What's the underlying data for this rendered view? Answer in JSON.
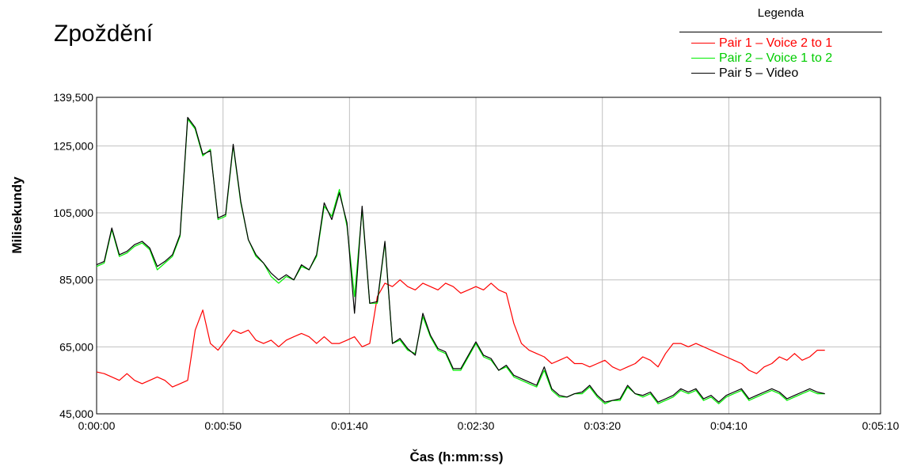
{
  "chart_data": {
    "type": "line",
    "title": "Zpoždění",
    "xlabel": "Čas (h:mm:ss)",
    "ylabel": "Milisekundy",
    "x_unit": "h:mm:ss",
    "xlim": [
      "0:00:00",
      "0:05:10"
    ],
    "ylim": [
      45000,
      139500
    ],
    "x_ticks": [
      "0:00:00",
      "0:00:50",
      "0:01:40",
      "0:02:30",
      "0:03:20",
      "0:04:10",
      "0:05:10"
    ],
    "y_ticks": [
      "139,500",
      "125,000",
      "105,000",
      "85,000",
      "65,000",
      "45,000"
    ],
    "grid": true,
    "legend": {
      "title": "Legenda",
      "position": "top-right"
    },
    "x": [
      "0:00:00",
      "0:00:03",
      "0:00:06",
      "0:00:09",
      "0:00:12",
      "0:00:15",
      "0:00:18",
      "0:00:21",
      "0:00:24",
      "0:00:27",
      "0:00:30",
      "0:00:33",
      "0:00:36",
      "0:00:39",
      "0:00:42",
      "0:00:45",
      "0:00:48",
      "0:00:51",
      "0:00:54",
      "0:00:57",
      "0:01:00",
      "0:01:03",
      "0:01:06",
      "0:01:09",
      "0:01:12",
      "0:01:15",
      "0:01:18",
      "0:01:21",
      "0:01:24",
      "0:01:27",
      "0:01:30",
      "0:01:33",
      "0:01:36",
      "0:01:39",
      "0:01:42",
      "0:01:45",
      "0:01:48",
      "0:01:51",
      "0:01:54",
      "0:01:57",
      "0:02:00",
      "0:02:03",
      "0:02:06",
      "0:02:09",
      "0:02:12",
      "0:02:15",
      "0:02:18",
      "0:02:21",
      "0:02:24",
      "0:02:27",
      "0:02:30",
      "0:02:33",
      "0:02:36",
      "0:02:39",
      "0:02:42",
      "0:02:45",
      "0:02:48",
      "0:02:51",
      "0:02:54",
      "0:02:57",
      "0:03:00",
      "0:03:03",
      "0:03:06",
      "0:03:09",
      "0:03:12",
      "0:03:15",
      "0:03:18",
      "0:03:21",
      "0:03:24",
      "0:03:27",
      "0:03:30",
      "0:03:33",
      "0:03:36",
      "0:03:39",
      "0:03:42",
      "0:03:45",
      "0:03:48",
      "0:03:51",
      "0:03:54",
      "0:03:57",
      "0:04:00",
      "0:04:03",
      "0:04:06",
      "0:04:09",
      "0:04:12",
      "0:04:15",
      "0:04:18",
      "0:04:21",
      "0:04:24",
      "0:04:27",
      "0:04:30",
      "0:04:33",
      "0:04:36",
      "0:04:39",
      "0:04:42",
      "0:04:45",
      "0:04:48"
    ],
    "series": [
      {
        "name": "Pair 1 – Voice 2 to 1",
        "color": "#ff0000",
        "values": [
          57500,
          57000,
          56000,
          55000,
          57000,
          55000,
          54000,
          55000,
          56000,
          55000,
          53000,
          54000,
          55000,
          70000,
          76000,
          66000,
          64000,
          67000,
          70000,
          69000,
          70000,
          67000,
          66000,
          67000,
          65000,
          67000,
          68000,
          69000,
          68000,
          66000,
          68000,
          66000,
          66000,
          67000,
          68000,
          65000,
          66000,
          80000,
          84000,
          83000,
          85000,
          83000,
          82000,
          84000,
          83000,
          82000,
          84000,
          83000,
          81000,
          82000,
          83000,
          82000,
          84000,
          82000,
          81000,
          72000,
          66000,
          64000,
          63000,
          62000,
          60000,
          61000,
          62000,
          60000,
          60000,
          59000,
          60000,
          61000,
          59000,
          58000,
          59000,
          60000,
          62000,
          61000,
          59000,
          63000,
          66000,
          66000,
          65000,
          66000,
          65000,
          64000,
          63000,
          62000,
          61000,
          60000,
          58000,
          57000,
          59000,
          60000,
          62000,
          61000,
          63000,
          61000,
          62000,
          64000,
          64000
        ]
      },
      {
        "name": "Pair 2 – Voice 1 to 2",
        "color": "#00ee00",
        "values": [
          89000,
          90000,
          100000,
          92000,
          93000,
          95000,
          96000,
          94000,
          88000,
          90000,
          92000,
          98000,
          133000,
          130000,
          122000,
          124000,
          103000,
          104000,
          125000,
          108000,
          97000,
          92000,
          90000,
          86000,
          84000,
          86000,
          85000,
          89000,
          88000,
          92000,
          107000,
          104000,
          112000,
          101000,
          80000,
          106000,
          78000,
          78000,
          96000,
          66000,
          67000,
          64000,
          63000,
          74000,
          68000,
          64000,
          63000,
          58000,
          58000,
          62000,
          66000,
          62000,
          61000,
          58000,
          59000,
          56000,
          55000,
          54000,
          53000,
          58000,
          52000,
          50000,
          50000,
          51000,
          51000,
          53000,
          50000,
          48000,
          49000,
          49000,
          53000,
          51000,
          50000,
          51000,
          48000,
          49000,
          50000,
          52000,
          51000,
          52000,
          49000,
          50000,
          48000,
          50000,
          51000,
          52000,
          49000,
          50000,
          51000,
          52000,
          51000,
          49000,
          50000,
          51000,
          52000,
          51000,
          51000
        ]
      },
      {
        "name": "Pair 5 – Video",
        "color": "#000000",
        "values": [
          89500,
          90500,
          100500,
          92500,
          93500,
          95500,
          96500,
          94500,
          89000,
          90500,
          92500,
          98500,
          133500,
          130500,
          122500,
          123500,
          103500,
          104500,
          125500,
          108500,
          97000,
          92500,
          90000,
          87000,
          85000,
          86500,
          85000,
          89500,
          88000,
          92500,
          108000,
          103000,
          111000,
          102000,
          75000,
          107000,
          78000,
          78500,
          96500,
          66000,
          67500,
          64500,
          62500,
          75000,
          68500,
          64500,
          63500,
          58500,
          58500,
          62500,
          66500,
          62500,
          61500,
          58000,
          59500,
          56500,
          55500,
          54500,
          53500,
          59000,
          52500,
          50500,
          50000,
          51000,
          51500,
          53500,
          50500,
          48500,
          49000,
          49500,
          53500,
          51000,
          50500,
          51500,
          48500,
          49500,
          50500,
          52500,
          51500,
          52500,
          49500,
          50500,
          48500,
          50500,
          51500,
          52500,
          49500,
          50500,
          51500,
          52500,
          51500,
          49500,
          50500,
          51500,
          52500,
          51500,
          51000
        ]
      }
    ]
  }
}
